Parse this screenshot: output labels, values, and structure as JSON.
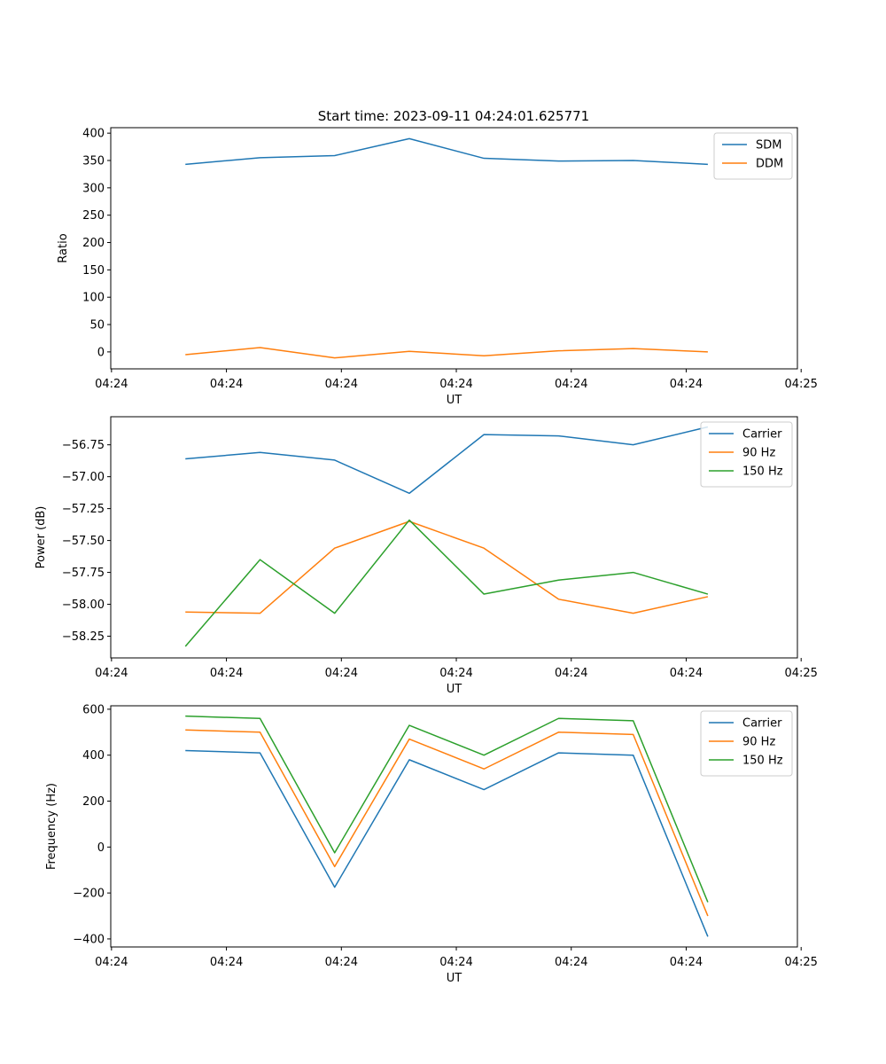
{
  "figure": {
    "title": "Start time: 2023-09-11 04:24:01.625771"
  },
  "colors": {
    "blue": "#1f77b4",
    "orange": "#ff7f0e",
    "green": "#2ca02c"
  },
  "chart_data": [
    {
      "type": "line",
      "title": "Start time: 2023-09-11 04:24:01.625771",
      "xlabel": "UT",
      "ylabel": "Ratio",
      "x": [
        1,
        2,
        3,
        4,
        5,
        6,
        7,
        8
      ],
      "xlim": [
        0,
        9.2
      ],
      "xticks": [
        0.01,
        1.55,
        3.09,
        4.63,
        6.17,
        7.71,
        9.25
      ],
      "xtick_labels": [
        "04:24",
        "04:24",
        "04:24",
        "04:24",
        "04:24",
        "04:24",
        "04:25"
      ],
      "ylim": [
        -31,
        410
      ],
      "yticks": [
        0,
        50,
        100,
        150,
        200,
        250,
        300,
        350,
        400
      ],
      "ytick_labels": [
        "0",
        "50",
        "100",
        "150",
        "200",
        "250",
        "300",
        "350",
        "400"
      ],
      "legend_position": "top-right",
      "series": [
        {
          "name": "SDM",
          "color": "#1f77b4",
          "values": [
            343,
            355,
            359,
            390,
            354,
            349,
            350,
            343
          ]
        },
        {
          "name": "DDM",
          "color": "#ff7f0e",
          "values": [
            -5,
            8,
            -11,
            1,
            -7,
            2,
            6,
            0
          ]
        }
      ]
    },
    {
      "type": "line",
      "title": "",
      "xlabel": "UT",
      "ylabel": "Power (dB)",
      "x": [
        1,
        2,
        3,
        4,
        5,
        6,
        7,
        8
      ],
      "xlim": [
        0,
        9.2
      ],
      "xticks": [
        0.01,
        1.55,
        3.09,
        4.63,
        6.17,
        7.71,
        9.25
      ],
      "xtick_labels": [
        "04:24",
        "04:24",
        "04:24",
        "04:24",
        "04:24",
        "04:24",
        "04:25"
      ],
      "ylim": [
        -58.42,
        -56.53
      ],
      "yticks": [
        -58.25,
        -58.0,
        -57.75,
        -57.5,
        -57.25,
        -57.0,
        -56.75
      ],
      "ytick_labels": [
        "−58.25",
        "−58.00",
        "−57.75",
        "−57.50",
        "−57.25",
        "−57.00",
        "−56.75"
      ],
      "legend_position": "top-right",
      "series": [
        {
          "name": "Carrier",
          "color": "#1f77b4",
          "values": [
            -56.86,
            -56.81,
            -56.87,
            -57.13,
            -56.67,
            -56.68,
            -56.75,
            -56.61
          ]
        },
        {
          "name": "90 Hz",
          "color": "#ff7f0e",
          "values": [
            -58.06,
            -58.07,
            -57.56,
            -57.35,
            -57.56,
            -57.96,
            -58.07,
            -57.94
          ]
        },
        {
          "name": "150 Hz",
          "color": "#2ca02c",
          "values": [
            -58.33,
            -57.65,
            -58.07,
            -57.34,
            -57.92,
            -57.81,
            -57.75,
            -57.92
          ]
        }
      ]
    },
    {
      "type": "line",
      "title": "",
      "xlabel": "UT",
      "ylabel": "Frequency (Hz)",
      "x": [
        1,
        2,
        3,
        4,
        5,
        6,
        7,
        8
      ],
      "xlim": [
        0,
        9.2
      ],
      "xticks": [
        0.01,
        1.55,
        3.09,
        4.63,
        6.17,
        7.71,
        9.25
      ],
      "xtick_labels": [
        "04:24",
        "04:24",
        "04:24",
        "04:24",
        "04:24",
        "04:24",
        "04:25"
      ],
      "ylim": [
        -435,
        615
      ],
      "yticks": [
        -400,
        -200,
        0,
        200,
        400,
        600
      ],
      "ytick_labels": [
        "−400",
        "−200",
        "0",
        "200",
        "400",
        "600"
      ],
      "legend_position": "top-right",
      "series": [
        {
          "name": "Carrier",
          "color": "#1f77b4",
          "values": [
            420,
            410,
            -175,
            380,
            250,
            410,
            400,
            -390
          ]
        },
        {
          "name": "90 Hz",
          "color": "#ff7f0e",
          "values": [
            510,
            500,
            -85,
            470,
            340,
            500,
            490,
            -300
          ]
        },
        {
          "name": "150 Hz",
          "color": "#2ca02c",
          "values": [
            570,
            560,
            -25,
            530,
            400,
            560,
            550,
            -240
          ]
        }
      ]
    }
  ]
}
